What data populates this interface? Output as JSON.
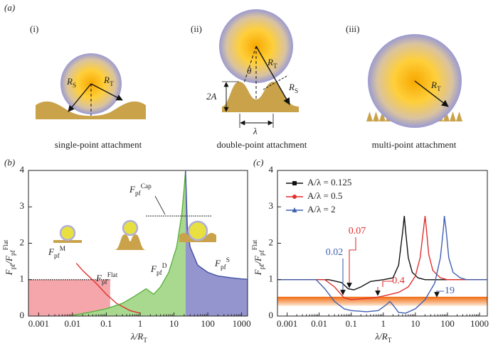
{
  "diagram": {
    "panel": "(a)",
    "cases": [
      "(i)",
      "(ii)",
      "(iii)"
    ],
    "captions": [
      "single-point attachment",
      "double-point attachment",
      "multi-point attachment"
    ],
    "symbols": {
      "RS": [
        [
          "R",
          ""
        ],
        [
          "S",
          "sub"
        ]
      ],
      "RT": [
        [
          "R",
          ""
        ],
        [
          "T",
          "sub"
        ]
      ],
      "theta": [
        [
          "θ",
          ""
        ]
      ],
      "amp": [
        [
          "2A",
          ""
        ]
      ],
      "lambda": [
        [
          "λ",
          ""
        ]
      ]
    }
  },
  "chart_data": [
    {
      "type": "line",
      "panel": "(b)",
      "xscale": "log",
      "xlabel": [
        [
          "λ/R",
          ""
        ],
        [
          "T",
          "sub"
        ]
      ],
      "ylabel": [
        [
          "F",
          ""
        ],
        [
          "pf",
          "sub"
        ],
        [
          "/F",
          ""
        ],
        [
          "pf",
          "sub"
        ],
        [
          "Flat",
          "sup"
        ]
      ],
      "xlim": [
        0.0005,
        1500
      ],
      "ylim": [
        0,
        4
      ],
      "xticks": [
        0.001,
        0.01,
        0.1,
        1,
        10,
        100,
        1000
      ],
      "yticks": [
        0,
        1,
        2,
        3,
        4
      ],
      "series": [
        {
          "name": [
            [
              "F",
              ""
            ],
            [
              "pf",
              "sub"
            ],
            [
              "Flat",
              "sup"
            ]
          ],
          "color": "#222222",
          "dash": true,
          "fill": "#f4a6aa",
          "x": [
            0.0005,
            0.13
          ],
          "values": [
            1,
            1
          ]
        },
        {
          "name": [
            [
              "F",
              ""
            ],
            [
              "pf",
              "sub"
            ],
            [
              "M",
              "sup"
            ]
          ],
          "color": "#e0302a",
          "x": [
            0.013,
            0.02,
            0.05,
            0.1,
            0.2,
            0.5,
            1
          ],
          "values": [
            1.45,
            1.25,
            0.9,
            0.6,
            0.35,
            0.15,
            0.08
          ]
        },
        {
          "name": [
            [
              "F",
              ""
            ],
            [
              "pf",
              "sub"
            ],
            [
              "D",
              "sup"
            ]
          ],
          "color": "#5cb040",
          "fill": "#a9d98f",
          "x": [
            0.01,
            0.03,
            0.1,
            0.3,
            0.7,
            1.5,
            2.5,
            4,
            7,
            12,
            17,
            20,
            22
          ],
          "values": [
            0.02,
            0.1,
            0.2,
            0.35,
            0.55,
            0.75,
            0.6,
            0.8,
            1.2,
            1.9,
            2.8,
            3.5,
            4
          ]
        },
        {
          "name": [
            [
              "F",
              ""
            ],
            [
              "pf",
              "sub"
            ],
            [
              "S",
              "sup"
            ]
          ],
          "color": "#4050a0",
          "fill": "#9494cf",
          "x": [
            22,
            25,
            30,
            50,
            100,
            200,
            500,
            1000,
            1500
          ],
          "values": [
            4,
            2.4,
            1.9,
            1.4,
            1.2,
            1.1,
            1.05,
            1.02,
            1.01
          ]
        },
        {
          "name": [
            [
              "F",
              ""
            ],
            [
              "pf",
              "sub"
            ],
            [
              "Cap",
              "sup"
            ]
          ],
          "color": "#222222",
          "dash": true,
          "x": [
            1.5,
            130
          ],
          "values": [
            2.75,
            2.75
          ]
        }
      ]
    },
    {
      "type": "line",
      "panel": "(c)",
      "xscale": "log",
      "legend": "top-left",
      "xlabel": [
        [
          "λ/R",
          ""
        ],
        [
          "T",
          "sub"
        ]
      ],
      "ylabel": [
        [
          "F",
          ""
        ],
        [
          "pf",
          "sub"
        ],
        [
          "/F",
          ""
        ],
        [
          "pf",
          "sub"
        ],
        [
          "Flat",
          "sup"
        ]
      ],
      "xlim": [
        0.0005,
        1750
      ],
      "ylim": [
        0,
        4
      ],
      "xticks": [
        0.001,
        0.01,
        0.1,
        1,
        10,
        100,
        1000
      ],
      "yticks": [
        0,
        1,
        2,
        3,
        4
      ],
      "band": {
        "ylim": [
          0.28,
          0.53
        ],
        "color": "#f07020"
      },
      "series": [
        {
          "name": "A/λ = 0.125",
          "color": "#111111",
          "marker": "square",
          "x": [
            0.0005,
            0.02,
            0.05,
            0.08,
            0.12,
            0.2,
            0.4,
            1,
            2,
            3,
            4,
            4.5,
            5,
            6,
            8,
            12,
            20,
            50,
            1750
          ],
          "values": [
            1,
            1,
            0.92,
            0.75,
            0.72,
            0.8,
            0.95,
            1,
            1.05,
            1.4,
            2.3,
            2.75,
            2.3,
            1.6,
            1.2,
            1.05,
            1,
            1,
            1
          ]
        },
        {
          "name": "A/λ = 0.5",
          "color": "#e03030",
          "marker": "circle",
          "x": [
            0.0005,
            0.015,
            0.03,
            0.06,
            0.1,
            0.2,
            0.5,
            1,
            3,
            6,
            10,
            14,
            18,
            20,
            22,
            26,
            35,
            60,
            100,
            1750
          ],
          "values": [
            1,
            1,
            0.8,
            0.5,
            0.45,
            0.47,
            0.5,
            0.55,
            0.65,
            0.8,
            1.1,
            1.6,
            2.4,
            2.75,
            2.4,
            1.7,
            1.25,
            1.05,
            1,
            1
          ]
        },
        {
          "name": "A/λ = 2",
          "color": "#4060b0",
          "marker": "triangle",
          "x": [
            0.0005,
            0.008,
            0.015,
            0.03,
            0.06,
            0.1,
            0.3,
            0.7,
            1.2,
            1.6,
            2,
            3,
            5,
            10,
            20,
            40,
            60,
            75,
            80,
            90,
            110,
            150,
            250,
            400,
            1750
          ],
          "values": [
            1,
            1,
            0.75,
            0.4,
            0.2,
            0.15,
            0.12,
            0.15,
            0.3,
            0.4,
            0.3,
            0.1,
            0.08,
            0.2,
            0.45,
            0.9,
            1.6,
            2.4,
            2.75,
            2.4,
            1.6,
            1.2,
            1.05,
            1,
            1
          ]
        }
      ],
      "annotations": [
        {
          "text": "0.02",
          "color": "#4060b0"
        },
        {
          "text": "0.07",
          "color": "#e03030"
        },
        {
          "text": "0.4",
          "color": "#e03030"
        },
        {
          "text": "19",
          "color": "#4060b0"
        }
      ]
    }
  ]
}
